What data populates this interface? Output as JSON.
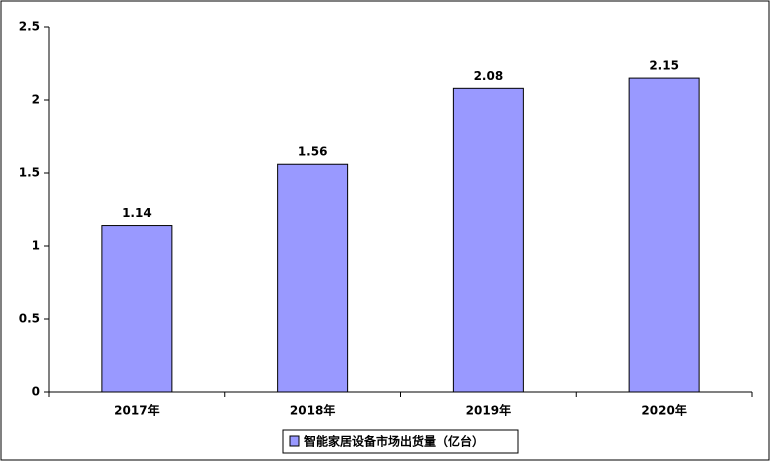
{
  "chart_data": {
    "type": "bar",
    "categories": [
      "2017年",
      "2018年",
      "2019年",
      "2020年"
    ],
    "series": [
      {
        "name": "智能家居设备市场出货量（亿台）",
        "color": "#9999ff",
        "values": [
          1.14,
          1.56,
          2.08,
          2.15
        ]
      }
    ],
    "ylim": [
      0,
      2.5
    ],
    "yticks": [
      0,
      0.5,
      1,
      1.5,
      2,
      2.5
    ],
    "grid": false,
    "legend": "bottom"
  }
}
